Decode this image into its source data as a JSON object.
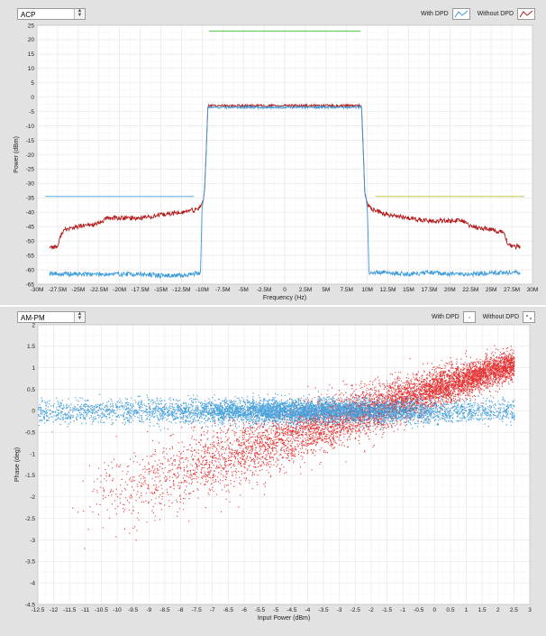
{
  "colors": {
    "with_dpd": "#3a9ad9",
    "without_dpd": "#b21818",
    "without_dpd_scatter": "#e01010",
    "limit_green": "#4fc24f",
    "limit_blue": "#5aaee0",
    "limit_yellow": "#c9c93a",
    "grid": "#e6e6e6",
    "panel_bg": "#e2e2e2"
  },
  "top": {
    "selector": "ACP",
    "legend": {
      "with": "With DPD",
      "without": "Without DPD"
    }
  },
  "bottom": {
    "selector": "AM-PM",
    "legend": {
      "with": "With DPD",
      "without": "Without DPD"
    }
  },
  "chart_data": [
    {
      "type": "line",
      "title": "ACP",
      "xlabel": "Frequency (Hz)",
      "ylabel": "Power (dBm)",
      "xlim": [
        -30,
        30
      ],
      "ylim": [
        -65,
        25
      ],
      "x_unit": "M",
      "x_ticks": [
        -30,
        -27.5,
        -25,
        -22.5,
        -20,
        -17.5,
        -15,
        -12.5,
        -10,
        -7.5,
        -5,
        -2.5,
        0,
        2.5,
        5,
        7.5,
        10,
        12.5,
        15,
        17.5,
        20,
        22.5,
        25,
        27.5,
        30
      ],
      "x_tick_labels": [
        "-30M",
        "-27.5M",
        "-25M",
        "-22.5M",
        "-20M",
        "-17.5M",
        "-15M",
        "-12.5M",
        "-10M",
        "-7.5M",
        "-5M",
        "-2.5M",
        "0",
        "2.5M",
        "5M",
        "7.5M",
        "10M",
        "12.5M",
        "15M",
        "17.5M",
        "20M",
        "22.5M",
        "25M",
        "27.5M",
        "30M"
      ],
      "y_ticks": [
        25,
        20,
        15,
        10,
        5,
        0,
        -5,
        -10,
        -15,
        -20,
        -25,
        -30,
        -35,
        -40,
        -45,
        -50,
        -55,
        -60,
        -65
      ],
      "series": [
        {
          "name": "With DPD",
          "x": [
            -28.5,
            -27.5,
            -25,
            -22.5,
            -20,
            -17.5,
            -15,
            -12.5,
            -10.2,
            -10,
            -9.7,
            -9.3,
            -9,
            -5,
            0,
            5,
            9,
            9.3,
            9.7,
            10,
            10.2,
            12.5,
            15,
            17.5,
            20,
            22.5,
            25,
            27.5,
            28.5
          ],
          "y": [
            -61,
            -61.5,
            -61.5,
            -61.5,
            -61.5,
            -61.5,
            -62,
            -62,
            -61,
            -38,
            -33,
            -3,
            -3.5,
            -3.5,
            -3.5,
            -3.5,
            -3.5,
            -3,
            -33,
            -38,
            -61,
            -61,
            -61.5,
            -61,
            -61.5,
            -61.5,
            -61,
            -61,
            -61
          ]
        },
        {
          "name": "Without DPD",
          "x": [
            -28.5,
            -27.5,
            -27,
            -26.5,
            -25,
            -22.5,
            -21.5,
            -20,
            -17.5,
            -15,
            -12.5,
            -10.5,
            -10,
            -9.7,
            -9.3,
            9.3,
            9.7,
            10,
            10.5,
            12.5,
            15,
            17.5,
            20,
            21.5,
            22.5,
            25,
            26.5,
            27,
            27.5,
            28.5
          ],
          "y": [
            -52,
            -52,
            -47,
            -46,
            -45,
            -44,
            -42,
            -42,
            -42,
            -41,
            -40,
            -39,
            -37,
            -33,
            -3,
            -3,
            -33,
            -37,
            -39,
            -41,
            -42,
            -43,
            -43,
            -43,
            -45,
            -46,
            -47,
            -51,
            -52,
            -52
          ]
        }
      ],
      "limits": [
        {
          "name": "in-band limit",
          "x": [
            -9.2,
            9.2
          ],
          "y": 23,
          "color": "#4fc24f"
        },
        {
          "name": "lower adjacent limit",
          "x": [
            -29,
            -11
          ],
          "y": -34.5,
          "color": "#5aaee0"
        },
        {
          "name": "upper adjacent limit",
          "x": [
            11,
            29
          ],
          "y": -34.5,
          "color": "#c9c93a"
        }
      ]
    },
    {
      "type": "scatter",
      "title": "AM-PM",
      "xlabel": "Input Power (dBm)",
      "ylabel": "Phase (deg)",
      "xlim": [
        -12.5,
        3
      ],
      "ylim": [
        -4.5,
        2
      ],
      "x_ticks": [
        -12.5,
        -12,
        -11.5,
        -11,
        -10.5,
        -10,
        -9.5,
        -9,
        -8.5,
        -8,
        -7.5,
        -7,
        -6.5,
        -6,
        -5.5,
        -5,
        -4.5,
        -4,
        -3.5,
        -3,
        -2.5,
        -2,
        -1.5,
        -1,
        -0.5,
        0,
        0.5,
        1,
        1.5,
        2,
        2.5,
        3
      ],
      "y_ticks": [
        2,
        1.5,
        1,
        0.5,
        0,
        -0.5,
        -1,
        -1.5,
        -2,
        -2.5,
        -3,
        -3.5,
        -4,
        -4.5
      ],
      "series": [
        {
          "name": "With DPD",
          "trend": {
            "x": [
              -12.5,
              2.5
            ],
            "phase_mean": 0,
            "phase_spread": 0.3
          },
          "points": 6000
        },
        {
          "name": "Without DPD",
          "trend": {
            "x": [
              -11.5,
              2.5
            ],
            "phase_at_min": -2.2,
            "phase_at_max": 1.1,
            "spread_at_min": 0.9,
            "spread_at_max": 0.3
          },
          "points": 7000
        }
      ]
    }
  ]
}
